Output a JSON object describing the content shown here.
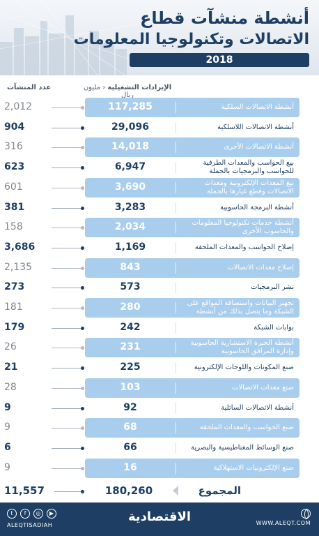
{
  "header": {
    "title_line1": "أنشطة منشآت قطاع",
    "title_line2": "الاتصالات وتكنولوجيا المعلومات",
    "year": "2018"
  },
  "columns": {
    "revenue_bold": "الإيرادات التشغيلية",
    "revenue_unit": "مليون ريال",
    "count": "عدد المنشآت"
  },
  "rows": [
    {
      "label": "أنشطة الاتصالات السلكية",
      "revenue": "117,285",
      "count": "2,012"
    },
    {
      "label": "أنشطة الاتصالات اللاسلكية",
      "revenue": "29,096",
      "count": "904"
    },
    {
      "label": "أنشطة الاتصالات الأخرى",
      "revenue": "14,018",
      "count": "316"
    },
    {
      "label": "بيع الحواسب والمعدات الطرفية للحواسب والبرمجيات بالجملة",
      "revenue": "6,947",
      "count": "623"
    },
    {
      "label": "بيع المعدات الإلكترونية ومعدات الاتصالات وقطع غيارها بالجملة",
      "revenue": "3,690",
      "count": "601"
    },
    {
      "label": "أنشطة البرمجة الحاسوبية",
      "revenue": "3,283",
      "count": "381"
    },
    {
      "label": "أنشطة خدمات تكنولوجيا المعلومات والحاسوب الأخرى",
      "revenue": "2,034",
      "count": "158"
    },
    {
      "label": "إصلاح الحواسب والمعدات الملحقة",
      "revenue": "1,169",
      "count": "3,686"
    },
    {
      "label": "إصلاح معدات الاتصالات",
      "revenue": "843",
      "count": "2,135"
    },
    {
      "label": "نشر البرمجيات",
      "revenue": "573",
      "count": "273"
    },
    {
      "label": "تجهيز البيانات واستضافة المواقع على الشبكة وما يتصل بذلك من أنشطة",
      "revenue": "280",
      "count": "181"
    },
    {
      "label": "بوابات الشبكة",
      "revenue": "242",
      "count": "179"
    },
    {
      "label": "أنشطة الخبرة الاستشارية الحاسوبية وإدارة المرافق الحاسوبية",
      "revenue": "231",
      "count": "26"
    },
    {
      "label": "صنع المكونات واللوحات الإلكترونية",
      "revenue": "225",
      "count": "21"
    },
    {
      "label": "صنع معدات الاتصالات",
      "revenue": "103",
      "count": "28"
    },
    {
      "label": "أنشطة الاتصالات الساتلية",
      "revenue": "92",
      "count": "9"
    },
    {
      "label": "صنع الحواسب والمعدات الملحقة",
      "revenue": "68",
      "count": "9"
    },
    {
      "label": "صنع الوسائط المغناطيسية والبصرية",
      "revenue": "66",
      "count": "6"
    },
    {
      "label": "صنع الإلكترونيات الاستهلاكية",
      "revenue": "16",
      "count": "9"
    }
  ],
  "total": {
    "label": "المجموع",
    "revenue": "180,260",
    "count": "11,557"
  },
  "footer": {
    "handle": "ALEQTISADIAH",
    "logo": "الاقتصادية",
    "website": "WWW.ALEQT.COM",
    "social_icons": [
      "twitter-icon",
      "facebook-icon",
      "instagram-icon",
      "youtube-icon"
    ]
  },
  "colors": {
    "navy": "#1e3f63",
    "bar_blue": "#a9cdec",
    "muted_gray": "#808890"
  }
}
